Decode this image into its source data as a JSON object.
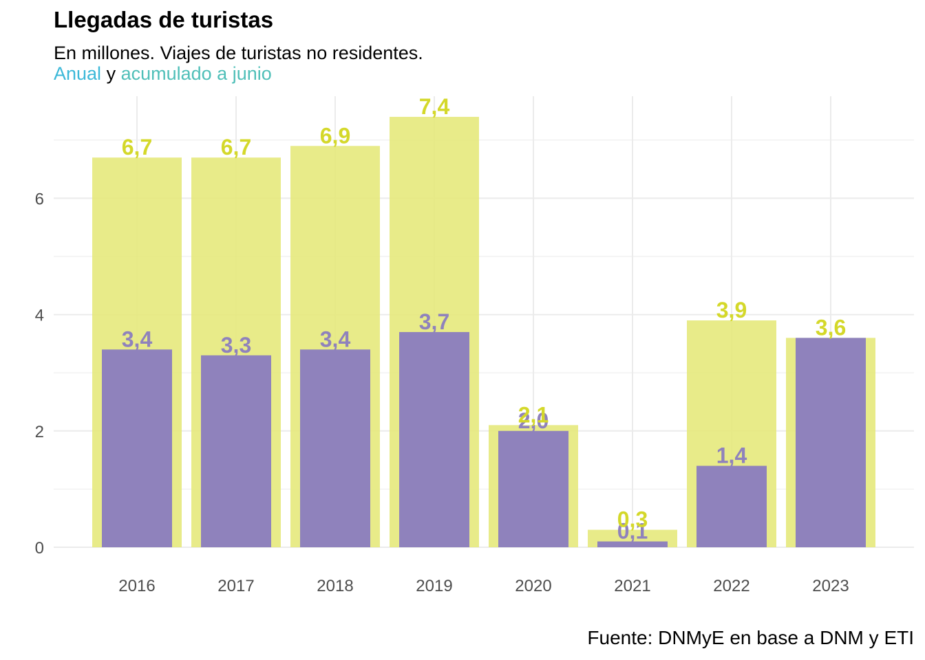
{
  "header": {
    "title": "Llegadas de turistas",
    "subtitle": "En millones. Viajes de turistas no residentes.",
    "legend_anual": "Anual",
    "legend_y": "y",
    "legend_acumulado": "acumulado a junio"
  },
  "caption": "Fuente: DNMyE en base a DNM y ETI",
  "colors": {
    "anual": "#e6e97c",
    "anual_label": "#d4d82a",
    "acumulado": "#8f82bc",
    "acumulado_label": "#8f82bc",
    "grid": "#ebebeb"
  },
  "chart_data": {
    "type": "bar",
    "title": "Llegadas de turistas",
    "xlabel": "",
    "ylabel": "",
    "ylim": [
      0,
      7.4
    ],
    "yticks": [
      0,
      2,
      4,
      6
    ],
    "categories": [
      "2016",
      "2017",
      "2018",
      "2019",
      "2020",
      "2021",
      "2022",
      "2023"
    ],
    "series": [
      {
        "name": "Anual",
        "values": [
          6.7,
          6.7,
          6.9,
          7.4,
          2.1,
          0.3,
          3.9,
          3.6
        ],
        "labels": [
          "6,7",
          "6,7",
          "6,9",
          "7,4",
          "2,1",
          "0,3",
          "3,9",
          "3,6"
        ]
      },
      {
        "name": "acumulado a junio",
        "values": [
          3.4,
          3.3,
          3.4,
          3.7,
          2.0,
          0.1,
          1.4,
          3.6
        ],
        "labels": [
          "3,4",
          "3,3",
          "3,4",
          "3,7",
          "2,0",
          "0,1",
          "1,4",
          ""
        ]
      }
    ]
  }
}
